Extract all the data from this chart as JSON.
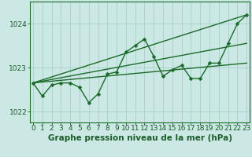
{
  "xlabel": "Graphe pression niveau de la mer (hPa)",
  "background_color": "#cce8e4",
  "grid_color": "#aad4cc",
  "line_color": "#1a6b2a",
  "xlim": [
    -0.3,
    23.3
  ],
  "ylim": [
    1021.75,
    1024.5
  ],
  "yticks": [
    1022,
    1023,
    1024
  ],
  "xticks": [
    0,
    1,
    2,
    3,
    4,
    5,
    6,
    7,
    8,
    9,
    10,
    11,
    12,
    13,
    14,
    15,
    16,
    17,
    18,
    19,
    20,
    21,
    22,
    23
  ],
  "main_x": [
    0,
    1,
    2,
    3,
    4,
    5,
    6,
    7,
    8,
    9,
    10,
    11,
    12,
    13,
    14,
    15,
    16,
    17,
    18,
    19,
    20,
    21,
    22,
    23
  ],
  "main_y": [
    1022.65,
    1022.35,
    1022.6,
    1022.65,
    1022.65,
    1022.55,
    1022.2,
    1022.4,
    1022.85,
    1022.9,
    1023.35,
    1023.5,
    1023.65,
    1023.25,
    1022.8,
    1022.95,
    1023.05,
    1022.75,
    1022.75,
    1023.1,
    1023.1,
    1023.55,
    1024.0,
    1024.2
  ],
  "trend_lines": [
    {
      "x0": 0,
      "y0": 1022.65,
      "x1": 23,
      "y1": 1024.2
    },
    {
      "x0": 0,
      "y0": 1022.65,
      "x1": 23,
      "y1": 1023.55
    },
    {
      "x0": 0,
      "y0": 1022.65,
      "x1": 23,
      "y1": 1023.1
    }
  ],
  "marker_size": 2.5,
  "marker": "D",
  "linewidth": 1.0,
  "font_color": "#1a5c28",
  "tick_fontsize": 6.5,
  "xlabel_fontsize": 7.5
}
